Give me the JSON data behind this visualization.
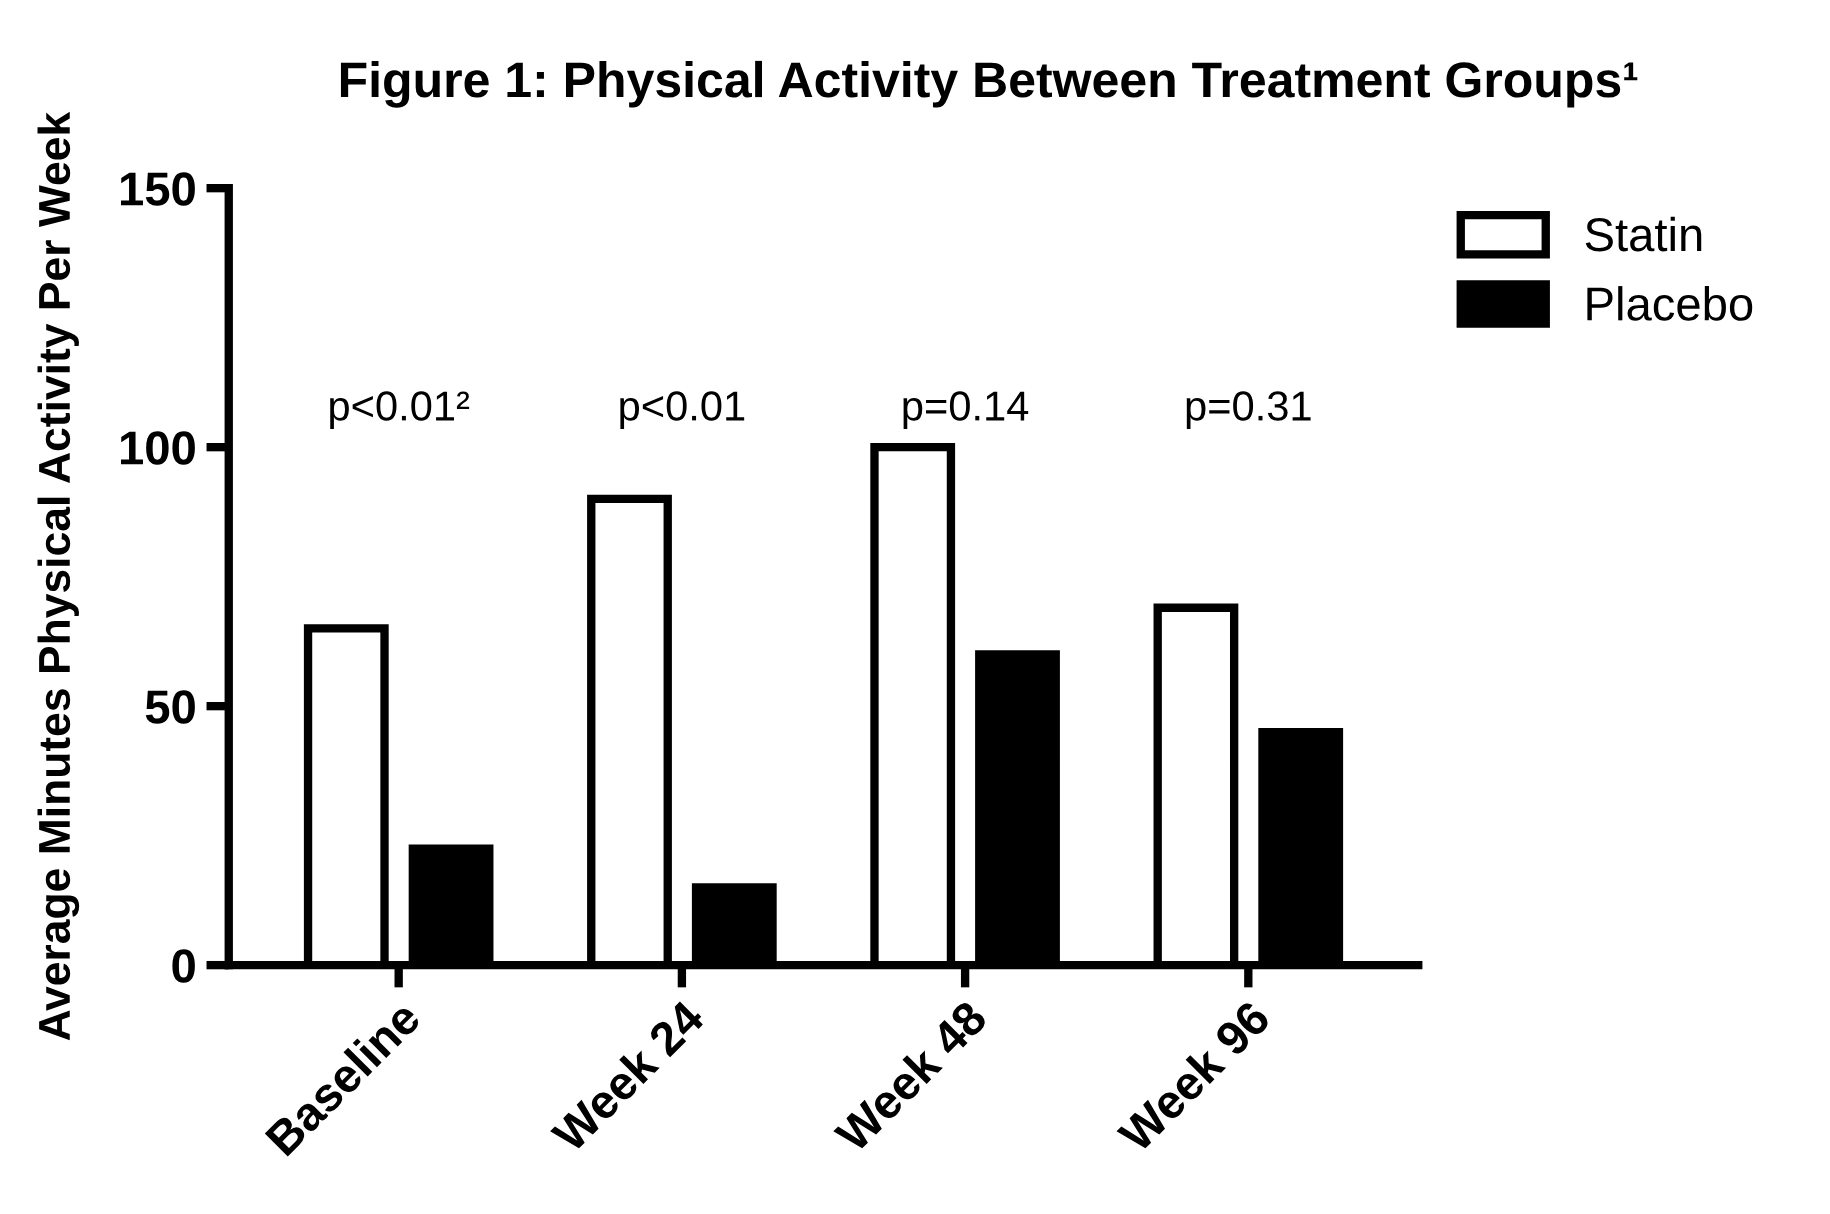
{
  "chart_data": {
    "type": "bar",
    "title": "Figure 1: Physical Activity Between Treatment Groups¹",
    "ylabel": "Average Minutes Physical Activity Per Week",
    "categories": [
      "Baseline",
      "Week 24",
      "Week 48",
      "Week 96"
    ],
    "series": [
      {
        "name": "Statin",
        "color": "#ffffff",
        "values": [
          65,
          90,
          100,
          69
        ]
      },
      {
        "name": "Placebo",
        "color": "#000000",
        "values": [
          22.5,
          15,
          60,
          45
        ]
      }
    ],
    "ylim": [
      0,
      150
    ],
    "yticks": [
      0,
      50,
      100,
      150
    ],
    "annotations": [
      "p<0.01²",
      "p<0.01",
      "p=0.14",
      "p=0.31"
    ],
    "grid": false,
    "legend": "top right"
  }
}
